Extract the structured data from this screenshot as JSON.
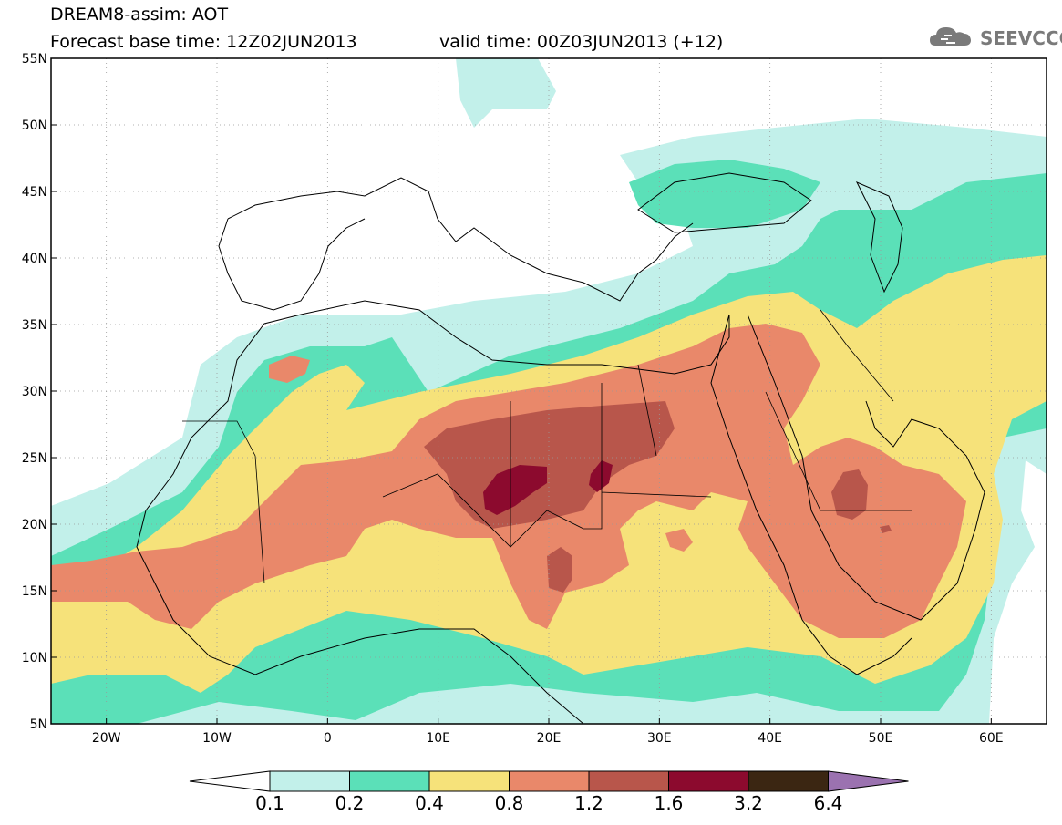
{
  "header": {
    "line1": "DREAM8-assim: AOT",
    "base_time": "Forecast base time: 12Z02JUN2013",
    "valid_time": "valid time: 00Z03JUN2013 (+12)"
  },
  "logo": {
    "text": "SEEVCCC",
    "icon": "cloud-icon"
  },
  "map": {
    "lat_labels": [
      "55N",
      "50N",
      "45N",
      "40N",
      "35N",
      "30N",
      "25N",
      "20N",
      "15N",
      "10N",
      "5N"
    ],
    "lon_labels": [
      "20W",
      "10W",
      "0",
      "10E",
      "20E",
      "30E",
      "40E",
      "50E",
      "60E"
    ],
    "lat_values": [
      55,
      50,
      45,
      40,
      35,
      30,
      25,
      20,
      15,
      10,
      5
    ],
    "lon_values": [
      -20,
      -10,
      0,
      10,
      20,
      30,
      40,
      50,
      60
    ]
  },
  "colorbar": {
    "labels": [
      "0.1",
      "0.2",
      "0.4",
      "0.8",
      "1.2",
      "1.6",
      "3.2",
      "6.4"
    ],
    "colors": [
      "#ffffff",
      "#c2f0ea",
      "#5be0b8",
      "#f6e27a",
      "#e9886a",
      "#b8564b",
      "#8c0a2e",
      "#3b2612",
      "#9b72b0"
    ]
  },
  "colors": {
    "c01": "#c2f0ea",
    "c02": "#5be0b8",
    "c04": "#f6e27a",
    "c08": "#e9886a",
    "c12": "#b8564b",
    "c16": "#8c0a2e"
  }
}
